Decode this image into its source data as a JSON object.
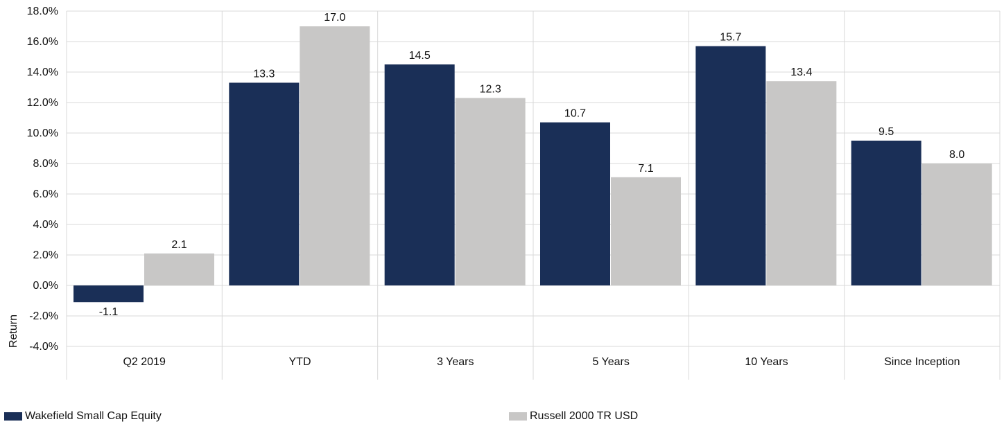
{
  "chart_data": {
    "type": "bar",
    "categories": [
      "Q2 2019",
      "YTD",
      "3 Years",
      "5 Years",
      "10 Years",
      "Since Inception"
    ],
    "series": [
      {
        "name": "Wakefield Small Cap Equity",
        "values": [
          -1.1,
          13.3,
          14.5,
          10.7,
          15.7,
          9.5
        ],
        "color": "#1a2f57"
      },
      {
        "name": "Russell 2000 TR USD",
        "values": [
          2.1,
          17.0,
          12.3,
          7.1,
          13.4,
          8.0
        ],
        "color": "#c8c7c6"
      }
    ],
    "data_labels": [
      [
        "-1.1",
        "13.3",
        "14.5",
        "10.7",
        "15.7",
        "9.5"
      ],
      [
        "2.1",
        "17.0",
        "12.3",
        "7.1",
        "13.4",
        "8.0"
      ]
    ],
    "ylabel": "Return",
    "ylim": [
      -4,
      18
    ],
    "ytick_values": [
      -4,
      -2,
      0,
      2,
      4,
      6,
      8,
      10,
      12,
      14,
      16,
      18
    ],
    "ytick_labels": [
      "-4.0%",
      "-2.0%",
      "0.0%",
      "2.0%",
      "4.0%",
      "6.0%",
      "8.0%",
      "10.0%",
      "12.0%",
      "14.0%",
      "16.0%",
      "18.0%"
    ],
    "grid": true,
    "legend_position": "bottom"
  }
}
